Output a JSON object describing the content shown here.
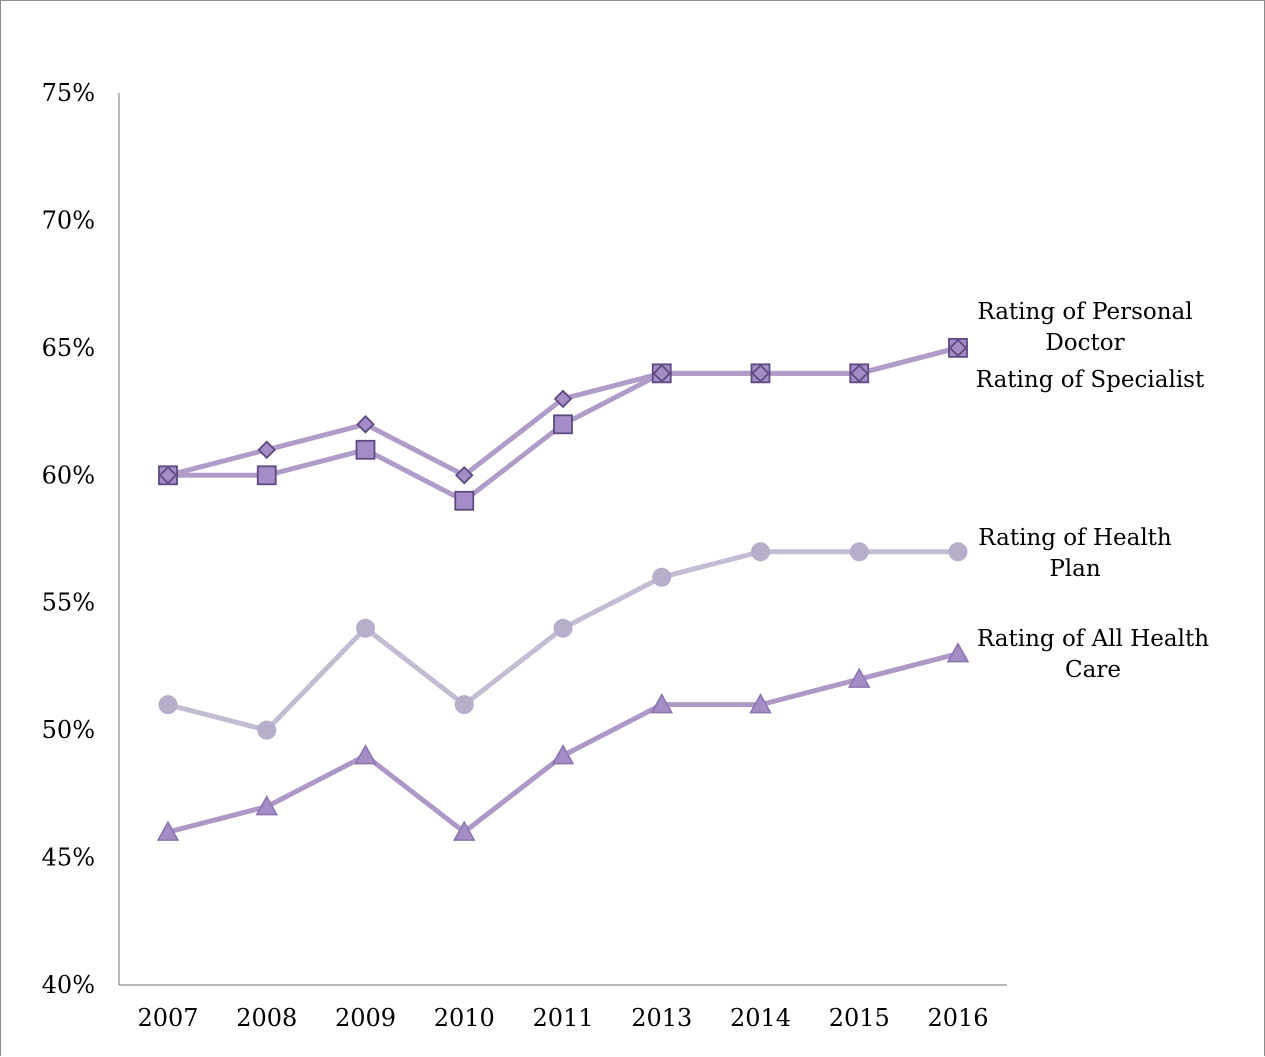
{
  "chart_data": {
    "type": "line",
    "categories": [
      "2007",
      "2008",
      "2009",
      "2010",
      "2011",
      "2013",
      "2014",
      "2015",
      "2016"
    ],
    "ylim": [
      40,
      75
    ],
    "yticks": [
      40,
      45,
      50,
      55,
      60,
      65,
      70,
      75
    ],
    "ytick_labels": [
      "40%",
      "45%",
      "50%",
      "55%",
      "60%",
      "65%",
      "70%",
      "75%"
    ],
    "grid": false,
    "legend": "direct labels at right",
    "series": [
      {
        "name": "Rating of Personal Doctor",
        "marker": "diamond",
        "line_color": "#b09cc9",
        "marker_fill": "#a48cc6",
        "marker_stroke": "#5d4a80",
        "values": [
          60,
          61,
          62,
          60,
          63,
          64,
          64,
          64,
          65
        ]
      },
      {
        "name": "Rating of Specialist",
        "marker": "square",
        "line_color": "#b09cc9",
        "marker_fill": "#a48cc6",
        "marker_stroke": "#5d4a80",
        "values": [
          60,
          60,
          61,
          59,
          62,
          64,
          64,
          64,
          65
        ]
      },
      {
        "name": "Rating of Health Plan",
        "marker": "circle",
        "line_color": "#c3bcd3",
        "marker_fill": "#b6aecb",
        "marker_stroke": "#b6aecb",
        "values": [
          51,
          50,
          54,
          51,
          54,
          56,
          57,
          57,
          57
        ]
      },
      {
        "name": "Rating of All Health Care",
        "marker": "triangle",
        "line_color": "#ad98c7",
        "marker_fill": "#a48cc6",
        "marker_stroke": "#8a74ad",
        "values": [
          46,
          47,
          49,
          46,
          49,
          51,
          51,
          52,
          53
        ]
      }
    ],
    "labels": [
      {
        "lines": [
          "Rating of Personal",
          "Doctor"
        ]
      },
      {
        "lines": [
          "Rating of Specialist"
        ]
      },
      {
        "lines": [
          "Rating of Health",
          "Plan"
        ]
      },
      {
        "lines": [
          "Rating of All Health",
          "Care"
        ]
      }
    ]
  }
}
